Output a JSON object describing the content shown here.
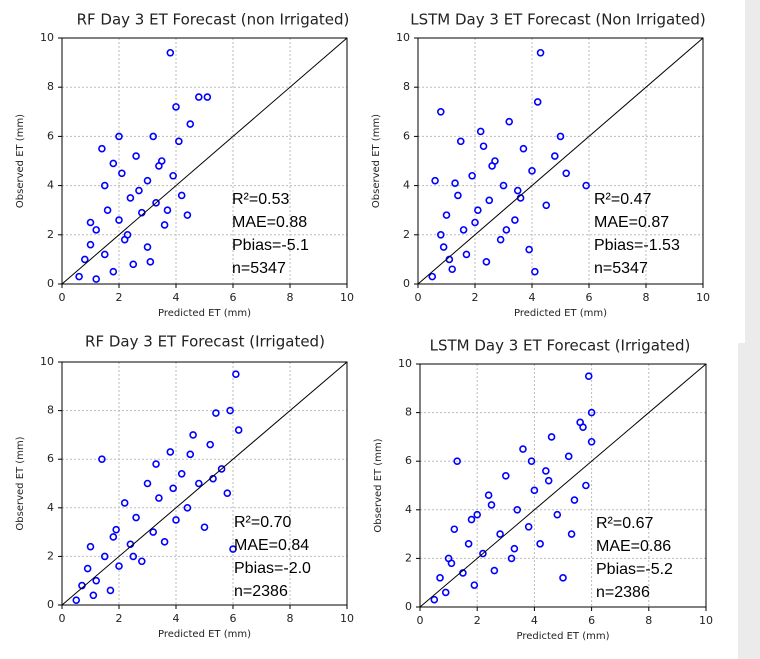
{
  "chart_data": [
    {
      "type": "scatter",
      "title": "RF Day 3 ET Forecast (non Irrigated)",
      "x_label": "Predicted ET (mm)",
      "y_label": "Observed ET (mm)",
      "xlim": [
        0,
        10
      ],
      "ylim": [
        0,
        10
      ],
      "xticks": [
        0,
        2,
        4,
        6,
        8,
        10
      ],
      "yticks": [
        0,
        2,
        4,
        6,
        8,
        10
      ],
      "grid": true,
      "annotations": [
        "R²=0.53",
        "MAE=0.88",
        "Pbias=-5.1",
        "n=5347"
      ],
      "series": [
        {
          "color": "#0000ff",
          "x": [
            0.6,
            0.8,
            1.0,
            1.2,
            1.4,
            1.5,
            1.6,
            1.8,
            2.0,
            2.1,
            2.2,
            2.4,
            2.5,
            2.6,
            2.8,
            3.0,
            3.0,
            3.2,
            3.3,
            3.5,
            3.6,
            3.8,
            3.9,
            4.0,
            4.2,
            4.5,
            4.8,
            5.1,
            1.2,
            1.5,
            2.0,
            2.3,
            2.7,
            3.1,
            3.4,
            3.7,
            4.1,
            4.4,
            1.0,
            1.8
          ],
          "values": [
            0.3,
            1.0,
            1.6,
            2.2,
            5.5,
            1.2,
            3.0,
            0.5,
            2.6,
            4.5,
            1.8,
            3.5,
            0.8,
            5.2,
            2.9,
            4.2,
            1.5,
            6.0,
            3.3,
            5.0,
            2.4,
            9.4,
            4.4,
            7.2,
            3.6,
            6.5,
            7.6,
            7.6,
            0.2,
            4.0,
            6.0,
            2.0,
            3.8,
            0.9,
            4.8,
            3.0,
            5.8,
            2.8,
            2.5,
            4.9
          ]
        }
      ]
    },
    {
      "type": "scatter",
      "title": "LSTM Day 3 ET Forecast (Non Irrigated)",
      "x_label": "Predicted ET (mm)",
      "y_label": "Observed ET (mm)",
      "xlim": [
        0,
        10
      ],
      "ylim": [
        0,
        10
      ],
      "xticks": [
        0,
        2,
        4,
        6,
        8,
        10
      ],
      "yticks": [
        0,
        2,
        4,
        6,
        8,
        10
      ],
      "grid": true,
      "annotations": [
        "R²=0.47",
        "MAE=0.87",
        "Pbias=-1.53",
        "n=5347"
      ],
      "series": [
        {
          "color": "#0000ff",
          "x": [
            0.5,
            0.6,
            0.8,
            0.9,
            1.0,
            1.2,
            1.4,
            1.5,
            1.7,
            1.9,
            2.0,
            2.2,
            2.4,
            2.5,
            2.7,
            2.9,
            3.0,
            3.2,
            3.4,
            3.5,
            3.7,
            3.9,
            4.0,
            4.2,
            4.3,
            4.5,
            4.8,
            5.0,
            5.2,
            5.9,
            0.8,
            1.1,
            1.6,
            2.1,
            2.6,
            3.1,
            3.6,
            4.1,
            1.3,
            2.3
          ],
          "values": [
            0.3,
            4.2,
            7.0,
            1.5,
            2.8,
            0.6,
            3.6,
            5.8,
            1.2,
            4.4,
            2.5,
            6.2,
            0.9,
            3.4,
            5.0,
            1.8,
            4.0,
            6.6,
            2.6,
            3.8,
            5.5,
            1.4,
            4.6,
            7.4,
            9.4,
            3.2,
            5.2,
            6.0,
            4.5,
            4.0,
            2.0,
            1.0,
            2.2,
            3.0,
            4.8,
            2.2,
            3.5,
            0.5,
            4.1,
            5.6
          ]
        }
      ]
    },
    {
      "type": "scatter",
      "title": "RF Day 3 ET Forecast (Irrigated)",
      "x_label": "Predicted ET (mm)",
      "y_label": "Observed ET (mm)",
      "xlim": [
        0,
        10
      ],
      "ylim": [
        0,
        10
      ],
      "xticks": [
        0,
        2,
        4,
        6,
        8,
        10
      ],
      "yticks": [
        0,
        2,
        4,
        6,
        8,
        10
      ],
      "grid": true,
      "annotations": [
        "R²=0.70",
        "MAE=0.84",
        "Pbias=-2.0",
        "n=2386"
      ],
      "series": [
        {
          "color": "#0000ff",
          "x": [
            0.5,
            0.7,
            0.9,
            1.0,
            1.2,
            1.4,
            1.5,
            1.7,
            1.9,
            2.0,
            2.2,
            2.4,
            2.6,
            2.8,
            3.0,
            3.2,
            3.4,
            3.6,
            3.8,
            4.0,
            4.2,
            4.4,
            4.6,
            4.8,
            5.0,
            5.2,
            5.4,
            5.6,
            5.8,
            6.0,
            6.1,
            6.2,
            1.1,
            1.8,
            2.5,
            3.3,
            3.9,
            4.5,
            5.3,
            5.9
          ],
          "values": [
            0.2,
            0.8,
            1.5,
            2.4,
            1.0,
            6.0,
            2.0,
            0.6,
            3.1,
            1.6,
            4.2,
            2.5,
            3.6,
            1.8,
            5.0,
            3.0,
            4.4,
            2.6,
            6.3,
            3.5,
            5.4,
            4.0,
            7.0,
            5.0,
            3.2,
            6.6,
            7.9,
            5.6,
            4.6,
            2.3,
            9.5,
            7.2,
            0.4,
            2.8,
            2.0,
            5.8,
            4.8,
            6.2,
            5.2,
            8.0
          ]
        }
      ]
    },
    {
      "type": "scatter",
      "title": "LSTM Day 3 ET Forecast (Irrigated)",
      "x_label": "Predicted ET (mm)",
      "y_label": "Observed ET (mm)",
      "xlim": [
        0,
        10
      ],
      "ylim": [
        0,
        10
      ],
      "xticks": [
        0,
        2,
        4,
        6,
        8,
        10
      ],
      "yticks": [
        0,
        2,
        4,
        6,
        8,
        10
      ],
      "grid": true,
      "annotations": [
        "R²=0.67",
        "MAE=0.86",
        "Pbias=-5.2",
        "n=2386"
      ],
      "series": [
        {
          "color": "#0000ff",
          "x": [
            0.5,
            0.7,
            0.9,
            1.0,
            1.2,
            1.3,
            1.5,
            1.7,
            1.9,
            2.0,
            2.2,
            2.4,
            2.6,
            2.8,
            3.0,
            3.2,
            3.4,
            3.6,
            3.8,
            4.0,
            4.2,
            4.4,
            4.6,
            4.8,
            5.0,
            5.2,
            5.4,
            5.6,
            5.8,
            6.0,
            5.9,
            6.0,
            1.1,
            1.8,
            2.5,
            3.3,
            3.9,
            4.5,
            5.3,
            5.7
          ],
          "values": [
            0.3,
            1.2,
            0.6,
            2.0,
            3.2,
            6.0,
            1.4,
            2.6,
            0.9,
            3.8,
            2.2,
            4.6,
            1.5,
            3.0,
            5.4,
            2.0,
            4.0,
            6.5,
            3.3,
            4.8,
            2.6,
            5.6,
            7.0,
            3.8,
            1.2,
            6.2,
            4.4,
            7.6,
            5.0,
            6.8,
            9.5,
            8.0,
            1.8,
            3.6,
            4.2,
            2.4,
            6.0,
            5.2,
            3.0,
            7.4
          ]
        }
      ]
    }
  ]
}
